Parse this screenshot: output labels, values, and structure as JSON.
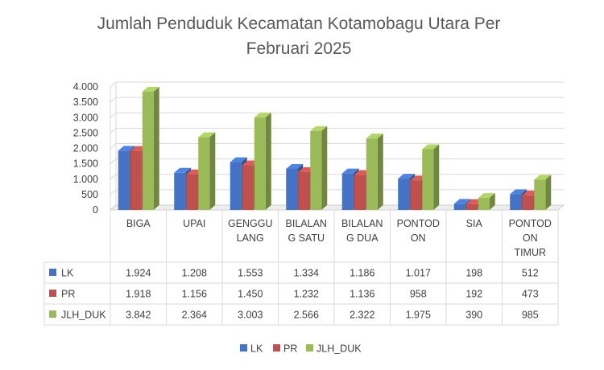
{
  "chart_data": {
    "type": "bar",
    "title": "Jumlah Penduduk Kecamatan Kotamobagu Utara Per Februari 2025",
    "title_lines": [
      "Jumlah Penduduk Kecamatan Kotamobagu Utara Per",
      "Februari 2025"
    ],
    "categories": [
      "BIGA",
      "UPAI",
      "GENGGULANG",
      "BILALANG SATU",
      "BILALANG DUA",
      "PONTODON",
      "SIA",
      "PONTODON TIMUR"
    ],
    "category_label_lines": [
      [
        "BIGA"
      ],
      [
        "UPAI"
      ],
      [
        "GENGGU",
        "LANG"
      ],
      [
        "BILALAN",
        "G SATU"
      ],
      [
        "BILALAN",
        "G DUA"
      ],
      [
        "PONTOD",
        "ON"
      ],
      [
        "SIA"
      ],
      [
        "PONTOD",
        "ON",
        "TIMUR"
      ]
    ],
    "series": [
      {
        "name": "LK",
        "color": "#4472C4",
        "values": [
          1924,
          1208,
          1553,
          1334,
          1186,
          1017,
          198,
          512
        ],
        "labels": [
          "1.924",
          "1.208",
          "1.553",
          "1.334",
          "1.186",
          "1.017",
          "198",
          "512"
        ]
      },
      {
        "name": "PR",
        "color": "#C0504D",
        "values": [
          1918,
          1156,
          1450,
          1232,
          1136,
          958,
          192,
          473
        ],
        "labels": [
          "1.918",
          "1.156",
          "1.450",
          "1.232",
          "1.136",
          "958",
          "192",
          "473"
        ]
      },
      {
        "name": "JLH_DUK",
        "color": "#9BBB59",
        "values": [
          3842,
          2364,
          3003,
          2566,
          2322,
          1975,
          390,
          985
        ],
        "labels": [
          "3.842",
          "2.364",
          "3.003",
          "2.566",
          "2.322",
          "1.975",
          "390",
          "985"
        ]
      }
    ],
    "ylim": [
      0,
      4000
    ],
    "yticks": [
      0,
      500,
      1000,
      1500,
      2000,
      2500,
      3000,
      3500,
      4000
    ],
    "ytick_labels": [
      "0",
      "500",
      "1.000",
      "1.500",
      "2.000",
      "2.500",
      "3.000",
      "3.500",
      "4.000"
    ],
    "grid": true,
    "legend_position": "bottom",
    "data_table": true
  }
}
